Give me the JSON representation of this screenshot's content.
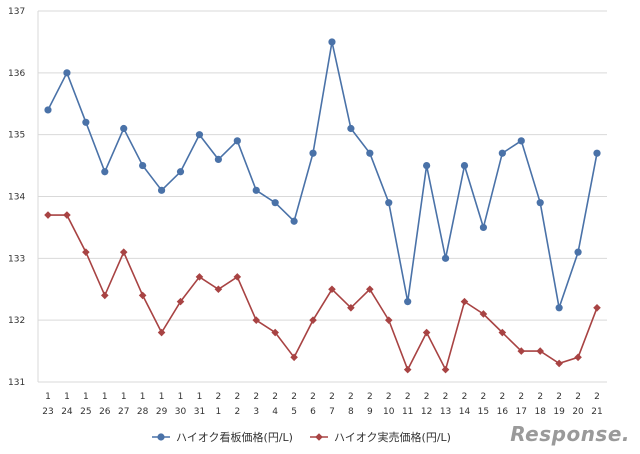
{
  "chart_data": {
    "type": "line",
    "ylim": [
      131,
      137
    ],
    "y_ticks": [
      131,
      132,
      133,
      134,
      135,
      136,
      137
    ],
    "grid": "horizontal",
    "legend_placement": "bottom-center",
    "categories": [
      [
        "1",
        "23"
      ],
      [
        "1",
        "24"
      ],
      [
        "1",
        "25"
      ],
      [
        "1",
        "26"
      ],
      [
        "1",
        "27"
      ],
      [
        "1",
        "28"
      ],
      [
        "1",
        "29"
      ],
      [
        "1",
        "30"
      ],
      [
        "1",
        "31"
      ],
      [
        "2",
        "1"
      ],
      [
        "2",
        "2"
      ],
      [
        "2",
        "3"
      ],
      [
        "2",
        "4"
      ],
      [
        "2",
        "5"
      ],
      [
        "2",
        "6"
      ],
      [
        "2",
        "7"
      ],
      [
        "2",
        "8"
      ],
      [
        "2",
        "9"
      ],
      [
        "2",
        "10"
      ],
      [
        "2",
        "11"
      ],
      [
        "2",
        "12"
      ],
      [
        "2",
        "13"
      ],
      [
        "2",
        "14"
      ],
      [
        "2",
        "15"
      ],
      [
        "2",
        "16"
      ],
      [
        "2",
        "17"
      ],
      [
        "2",
        "18"
      ],
      [
        "2",
        "19"
      ],
      [
        "2",
        "20"
      ],
      [
        "2",
        "21"
      ]
    ],
    "series": [
      {
        "name": "ハイオク看板価格(円/L)",
        "color": "#4a72a8",
        "marker": "circle",
        "values": [
          135.4,
          136.0,
          135.2,
          134.4,
          135.1,
          134.5,
          134.1,
          134.4,
          135.0,
          134.6,
          134.9,
          134.1,
          133.9,
          133.6,
          134.7,
          136.5,
          135.1,
          134.7,
          133.9,
          132.3,
          134.5,
          133.0,
          134.5,
          133.5,
          134.7,
          134.9,
          133.9,
          132.2,
          133.1,
          134.7
        ]
      },
      {
        "name": "ハイオク実売価格(円/L)",
        "color": "#a84343",
        "marker": "diamond",
        "values": [
          133.7,
          133.7,
          133.1,
          132.4,
          133.1,
          132.4,
          131.8,
          132.3,
          132.7,
          132.5,
          132.7,
          132.0,
          131.8,
          131.4,
          132.0,
          132.5,
          132.2,
          132.5,
          132.0,
          131.2,
          131.8,
          131.2,
          132.3,
          132.1,
          131.8,
          131.5,
          131.5,
          131.3,
          131.4,
          132.2
        ]
      }
    ]
  },
  "watermark": {
    "text": "Response."
  }
}
